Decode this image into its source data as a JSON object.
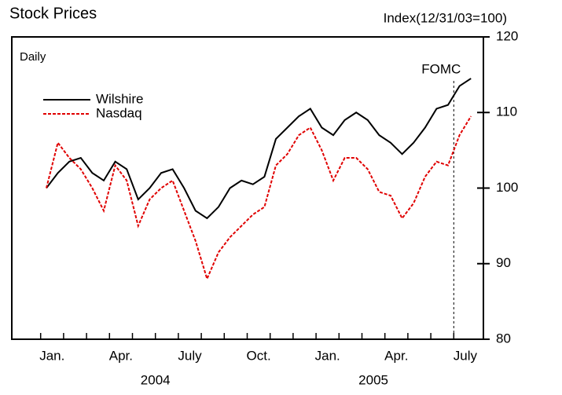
{
  "chart_data": {
    "type": "line",
    "title": "Stock Prices",
    "subtitle": "Daily",
    "y_axis_label": "Index(12/31/03=100)",
    "annotation": "FOMC",
    "year_labels": [
      "2004",
      "2005"
    ],
    "categories": [
      "Jan.",
      null,
      null,
      null,
      null,
      null,
      "Apr.",
      null,
      null,
      null,
      null,
      null,
      "July",
      null,
      null,
      null,
      null,
      null,
      "Oct.",
      null,
      null,
      null,
      null,
      null,
      "Jan.",
      null,
      null,
      null,
      null,
      null,
      "Apr.",
      null,
      null,
      null,
      null,
      null,
      "July",
      null
    ],
    "series": [
      {
        "name": "Wilshire",
        "color": "#000000",
        "dash": "solid",
        "values": [
          100,
          102,
          103.5,
          104,
          102,
          101,
          103.5,
          102.5,
          98.5,
          100,
          102,
          102.5,
          100,
          97,
          96,
          97.5,
          100,
          101,
          100.5,
          101.5,
          106.5,
          108,
          109.5,
          110.5,
          108,
          107,
          109,
          110,
          109,
          107,
          106,
          104.5,
          106,
          108,
          110.5,
          111,
          113.5,
          114.5
        ]
      },
      {
        "name": "Nasdaq",
        "color": "#e00000",
        "dash": "dashed",
        "values": [
          100,
          106,
          104,
          102.5,
          100,
          97,
          103,
          101,
          95,
          98.5,
          100,
          101,
          97,
          93,
          88,
          91.5,
          93.5,
          95,
          96.5,
          97.5,
          103,
          104.5,
          107,
          108,
          105,
          101,
          104,
          104,
          102.5,
          99.5,
          99,
          96,
          98,
          101.5,
          103.5,
          103,
          107,
          109.5
        ]
      }
    ],
    "ylim": [
      80,
      120
    ],
    "yticks": [
      80,
      90,
      100,
      110,
      120
    ],
    "y_axis_side": "right"
  }
}
